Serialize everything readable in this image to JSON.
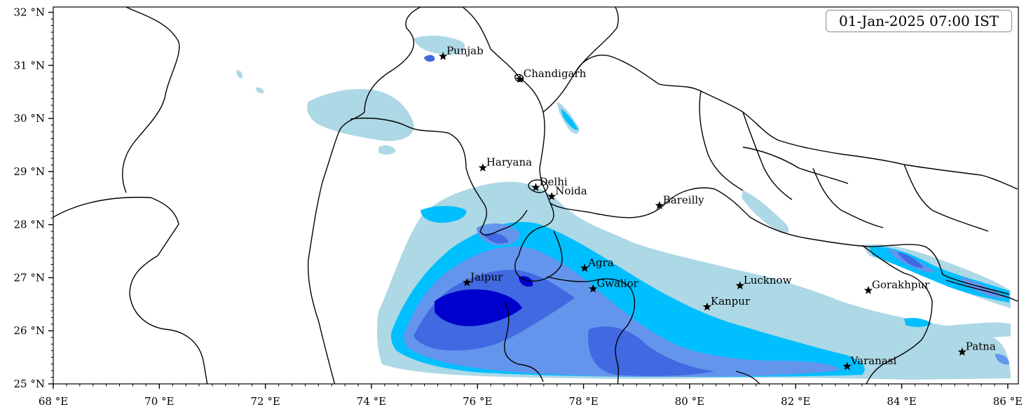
{
  "timestamp": "01-Jan-2025 07:00 IST",
  "colors": {
    "level1": "#add8e6",
    "level2": "#00bfff",
    "level3": "#6495ed",
    "level4": "#4169e1",
    "level5": "#0000cd"
  },
  "axes": {
    "x_ticks": [
      {
        "value": 68,
        "label": "68 °E"
      },
      {
        "value": 70,
        "label": "70 °E"
      },
      {
        "value": 72,
        "label": "72 °E"
      },
      {
        "value": 74,
        "label": "74 °E"
      },
      {
        "value": 76,
        "label": "76 °E"
      },
      {
        "value": 78,
        "label": "78 °E"
      },
      {
        "value": 80,
        "label": "80 °E"
      },
      {
        "value": 82,
        "label": "82 °E"
      },
      {
        "value": 84,
        "label": "84 °E"
      },
      {
        "value": 86,
        "label": "86 °E"
      }
    ],
    "y_ticks": [
      {
        "value": 25,
        "label": "25 °N"
      },
      {
        "value": 26,
        "label": "26 °N"
      },
      {
        "value": 27,
        "label": "27 °N"
      },
      {
        "value": 28,
        "label": "28 °N"
      },
      {
        "value": 29,
        "label": "29 °N"
      },
      {
        "value": 30,
        "label": "30 °N"
      },
      {
        "value": 31,
        "label": "31 °N"
      },
      {
        "value": 32,
        "label": "32 °N"
      }
    ],
    "xlim": [
      68,
      86.2
    ],
    "ylim": [
      25,
      32.1
    ]
  },
  "cities": [
    {
      "name": "Punjab",
      "lon": 75.35,
      "lat": 31.17
    },
    {
      "name": "Chandigarh",
      "lon": 76.8,
      "lat": 30.74
    },
    {
      "name": "Haryana",
      "lon": 76.1,
      "lat": 29.07
    },
    {
      "name": "Delhi",
      "lon": 77.1,
      "lat": 28.7
    },
    {
      "name": "Noida",
      "lon": 77.4,
      "lat": 28.53
    },
    {
      "name": "Bareilly",
      "lon": 79.43,
      "lat": 28.36
    },
    {
      "name": "Agra",
      "lon": 78.02,
      "lat": 27.18
    },
    {
      "name": "Jaipur",
      "lon": 75.8,
      "lat": 26.91
    },
    {
      "name": "Gwalior",
      "lon": 78.18,
      "lat": 26.79
    },
    {
      "name": "Lucknow",
      "lon": 80.95,
      "lat": 26.85
    },
    {
      "name": "Kanpur",
      "lon": 80.33,
      "lat": 26.45
    },
    {
      "name": "Gorakhpur",
      "lon": 83.37,
      "lat": 26.76
    },
    {
      "name": "Varanasi",
      "lon": 82.97,
      "lat": 25.33
    },
    {
      "name": "Patna",
      "lon": 85.14,
      "lat": 25.6
    }
  ]
}
